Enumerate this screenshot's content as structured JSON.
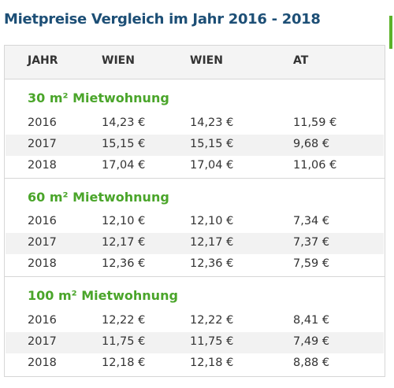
{
  "header": {
    "title": "Mietpreise Vergleich im Jahr 2016 - 2018"
  },
  "table": {
    "columns": [
      "JAHR",
      "WIEN",
      "WIEN",
      "AT"
    ],
    "sections": [
      {
        "title": "30 m² Mietwohnung",
        "rows": [
          [
            "2016",
            "14,23 €",
            "14,23 €",
            "11,59 €"
          ],
          [
            "2017",
            "15,15 €",
            "15,15 €",
            "9,68 €"
          ],
          [
            "2018",
            "17,04 €",
            "17,04 €",
            "11,06 €"
          ]
        ]
      },
      {
        "title": "60 m² Mietwohnung",
        "rows": [
          [
            "2016",
            "12,10 €",
            "12,10 €",
            "7,34 €"
          ],
          [
            "2017",
            "12,17 €",
            "12,17 €",
            "7,37 €"
          ],
          [
            "2018",
            "12,36 €",
            "12,36 €",
            "7,59 €"
          ]
        ]
      },
      {
        "title": "100 m² Mietwohnung",
        "rows": [
          [
            "2016",
            "12,22 €",
            "12,22 €",
            "8,41 €"
          ],
          [
            "2017",
            "11,75 €",
            "11,75 €",
            "7,49 €"
          ],
          [
            "2018",
            "12,18 €",
            "12,18 €",
            "8,88 €"
          ]
        ]
      }
    ]
  }
}
